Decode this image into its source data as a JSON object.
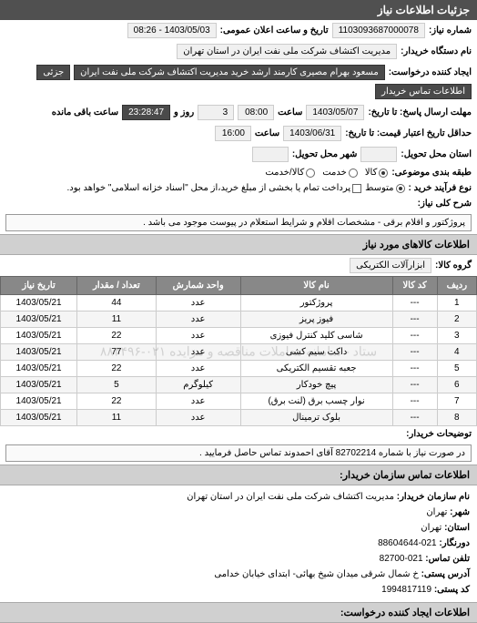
{
  "header": {
    "title": "جزئیات اطلاعات نیاز"
  },
  "fields": {
    "req_number_label": "شماره نیاز:",
    "req_number": "1103093687000078",
    "announce_label": "تاریخ و ساعت اعلان عمومی:",
    "announce_value": "1403/05/03 - 08:26",
    "buyer_org_label": "نام دستگاه خریدار:",
    "buyer_org": "مدیریت اکتشاف شرکت ملی نفت ایران در استان تهران",
    "requester_label": "ایجاد کننده درخواست:",
    "requester": "مسعود بهرام مصیری کارمند ارشد خرید مدیریت اکتشاف شرکت ملی نفت ایران",
    "contact_btn": "اطلاعات تماس خریدار",
    "detail_btn": "جزئی",
    "deadline_label": "مهلت ارسال پاسخ: تا تاریخ:",
    "deadline_date": "1403/05/07",
    "time_label": "ساعت",
    "deadline_time": "08:00",
    "days_label": "روز و",
    "days_value": "3",
    "remaining_label": "ساعت باقی مانده",
    "remaining_value": "23:28:47",
    "validity_label": "حداقل تاریخ اعتبار قیمت: تا تاریخ:",
    "validity_date": "1403/06/31",
    "validity_time": "16:00",
    "delivery_loc_label": "استان محل تحویل:",
    "city_label": "شهر محل تحویل:",
    "pkg_label": "طبقه بندی موضوعی:",
    "pkg_kala": "کالا",
    "pkg_service": "خدمت",
    "pkg_both": "کالا/خدمت",
    "process_label": "نوع فرآیند خرید :",
    "process_mid": "متوسط",
    "process_note": "پرداخت تمام یا بخشی از مبلغ خرید،از محل \"اسناد خزانه اسلامی\" خواهد بود.",
    "desc_label": "شرح کلی نیاز:",
    "desc_value": "پروژکتور و اقلام برقی - مشخصات اقلام و شرایط استعلام در پیوست موجود می باشد ."
  },
  "items_section": {
    "title": "اطلاعات کالاهای مورد نیاز",
    "group_label": "گروه کالا:",
    "group_value": "ابزارآلات الکتریکی",
    "columns": [
      "ردیف",
      "کد کالا",
      "نام کالا",
      "واحد شمارش",
      "تعداد / مقدار",
      "تاریخ نیاز"
    ],
    "rows": [
      {
        "n": "1",
        "code": "---",
        "name": "پروژکتور",
        "unit": "عدد",
        "qty": "44",
        "date": "1403/05/21"
      },
      {
        "n": "2",
        "code": "---",
        "name": "فیوز پریز",
        "unit": "عدد",
        "qty": "11",
        "date": "1403/05/21"
      },
      {
        "n": "3",
        "code": "---",
        "name": "شاسی کلید کنترل فیوزی",
        "unit": "عدد",
        "qty": "22",
        "date": "1403/05/21"
      },
      {
        "n": "4",
        "code": "---",
        "name": "داکت سیم کشی",
        "unit": "عدد",
        "qty": "77",
        "date": "1403/05/21"
      },
      {
        "n": "5",
        "code": "---",
        "name": "جعبه تقسیم الکتریکی",
        "unit": "عدد",
        "qty": "22",
        "date": "1403/05/21"
      },
      {
        "n": "6",
        "code": "---",
        "name": "پیچ خودکار",
        "unit": "کیلوگرم",
        "qty": "5",
        "date": "1403/05/21"
      },
      {
        "n": "7",
        "code": "---",
        "name": "نوار چسب برق (لنت برق)",
        "unit": "عدد",
        "qty": "22",
        "date": "1403/05/21"
      },
      {
        "n": "8",
        "code": "---",
        "name": "بلوک ترمینال",
        "unit": "عدد",
        "qty": "11",
        "date": "1403/05/21"
      }
    ],
    "watermark": "ستاد - سامانه معاملات مناقصه و مزایده ۰۲۱-۸۸۳۴۹۶"
  },
  "buyer_note": {
    "label": "توضیحات خریدار:",
    "text": "در صورت نیاز با شماره 82702214 آقای احمدوند تماس حاصل فرمایید ."
  },
  "contact": {
    "header": "اطلاعات تماس سازمان خریدار:",
    "org_label": "نام سازمان خریدار:",
    "org": "مدیریت اکتشاف شرکت ملی نفت ایران در استان تهران",
    "city_label": "شهر:",
    "city": "تهران",
    "province_label": "استان:",
    "province": "تهران",
    "fax_label": "دورنگار:",
    "fax": "021-88604644",
    "phone_label": "تلفن تماس:",
    "phone": "021-82700",
    "address_label": "آدرس پستی:",
    "address": "خ شمال شرقی میدان شیخ بهائی- ابتدای خیابان خدامی",
    "postal_label": "کد پستی:",
    "postal": "1994817119",
    "creator_header": "اطلاعات ایجاد کننده درخواست:"
  },
  "colors": {
    "header_bg": "#505050",
    "dark_field_bg": "#4a4a4a",
    "table_header_bg": "#888888",
    "section_bg": "#d0d0d0"
  }
}
